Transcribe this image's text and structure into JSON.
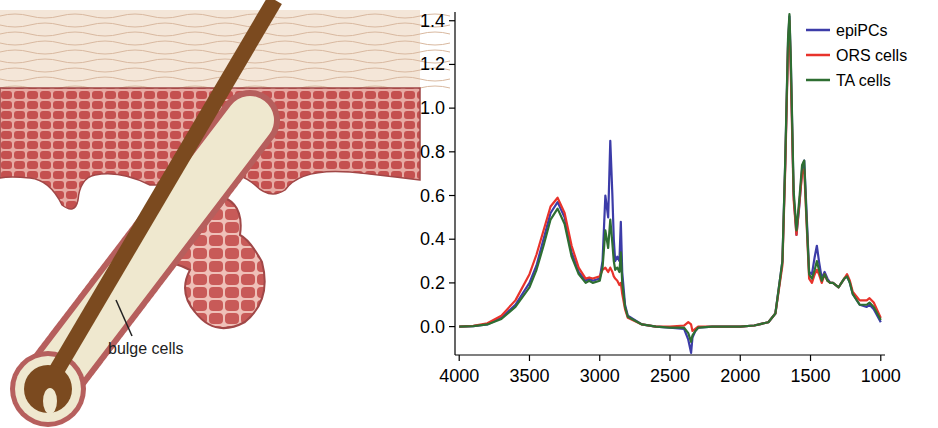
{
  "chart_data": {
    "type": "line",
    "x": [
      4000,
      3900,
      3800,
      3700,
      3600,
      3500,
      3450,
      3400,
      3350,
      3300,
      3250,
      3200,
      3150,
      3100,
      3075,
      3050,
      3000,
      2980,
      2960,
      2950,
      2940,
      2925,
      2910,
      2900,
      2890,
      2875,
      2860,
      2850,
      2840,
      2820,
      2800,
      2700,
      2600,
      2500,
      2400,
      2370,
      2350,
      2340,
      2320,
      2300,
      2200,
      2100,
      2000,
      1900,
      1800,
      1750,
      1700,
      1680,
      1660,
      1650,
      1640,
      1620,
      1600,
      1580,
      1560,
      1545,
      1530,
      1510,
      1490,
      1470,
      1455,
      1440,
      1420,
      1400,
      1380,
      1360,
      1340,
      1320,
      1300,
      1280,
      1260,
      1240,
      1220,
      1200,
      1150,
      1100,
      1080,
      1050,
      1000
    ],
    "series": [
      {
        "name": "epiPCs",
        "color": "#3c3ca8",
        "values": [
          0,
          0.002,
          0.01,
          0.04,
          0.1,
          0.2,
          0.28,
          0.4,
          0.52,
          0.57,
          0.5,
          0.34,
          0.25,
          0.21,
          0.22,
          0.21,
          0.22,
          0.3,
          0.6,
          0.55,
          0.5,
          0.85,
          0.6,
          0.4,
          0.3,
          0.32,
          0.3,
          0.48,
          0.25,
          0.1,
          0.05,
          0.01,
          0,
          -0.005,
          -0.01,
          -0.06,
          -0.12,
          -0.05,
          -0.02,
          -0.005,
          0,
          0,
          0,
          0.005,
          0.02,
          0.06,
          0.3,
          0.75,
          1.3,
          1.42,
          1.2,
          0.6,
          0.42,
          0.55,
          0.72,
          0.76,
          0.55,
          0.25,
          0.24,
          0.32,
          0.37,
          0.3,
          0.22,
          0.25,
          0.22,
          0.2,
          0.2,
          0.19,
          0.18,
          0.2,
          0.22,
          0.23,
          0.2,
          0.15,
          0.1,
          0.09,
          0.1,
          0.08,
          0.02
        ]
      },
      {
        "name": "ORS cells",
        "color": "#e8332b",
        "values": [
          0,
          0.003,
          0.015,
          0.05,
          0.12,
          0.24,
          0.33,
          0.44,
          0.55,
          0.59,
          0.52,
          0.37,
          0.27,
          0.22,
          0.225,
          0.22,
          0.23,
          0.26,
          0.27,
          0.26,
          0.25,
          0.27,
          0.25,
          0.23,
          0.22,
          0.21,
          0.19,
          0.2,
          0.15,
          0.08,
          0.04,
          0.01,
          0,
          0,
          0.005,
          0.02,
          0.01,
          -0.02,
          -0.01,
          0,
          0,
          0,
          0,
          0.005,
          0.02,
          0.06,
          0.28,
          0.72,
          1.28,
          1.4,
          1.15,
          0.58,
          0.42,
          0.56,
          0.7,
          0.72,
          0.5,
          0.22,
          0.2,
          0.24,
          0.26,
          0.24,
          0.2,
          0.24,
          0.21,
          0.2,
          0.2,
          0.19,
          0.18,
          0.2,
          0.22,
          0.24,
          0.21,
          0.16,
          0.12,
          0.12,
          0.13,
          0.11,
          0.04
        ]
      },
      {
        "name": "TA cells",
        "color": "#2e6e32",
        "values": [
          0,
          0.002,
          0.01,
          0.035,
          0.09,
          0.18,
          0.26,
          0.37,
          0.49,
          0.54,
          0.47,
          0.32,
          0.24,
          0.2,
          0.21,
          0.2,
          0.21,
          0.27,
          0.44,
          0.4,
          0.36,
          0.49,
          0.38,
          0.3,
          0.26,
          0.27,
          0.25,
          0.34,
          0.2,
          0.09,
          0.045,
          0.01,
          0,
          -0.005,
          -0.005,
          -0.03,
          -0.07,
          -0.04,
          -0.02,
          -0.005,
          0,
          0,
          0,
          0.005,
          0.02,
          0.06,
          0.3,
          0.76,
          1.32,
          1.43,
          1.22,
          0.62,
          0.44,
          0.58,
          0.74,
          0.76,
          0.52,
          0.24,
          0.22,
          0.26,
          0.3,
          0.26,
          0.21,
          0.24,
          0.21,
          0.2,
          0.2,
          0.19,
          0.18,
          0.2,
          0.22,
          0.23,
          0.2,
          0.15,
          0.1,
          0.1,
          0.11,
          0.09,
          0.03
        ]
      }
    ],
    "xlim": [
      4030,
      970
    ],
    "ylim": [
      -0.13,
      1.44
    ],
    "xticks": [
      4000,
      3500,
      3000,
      2500,
      2000,
      1500,
      1000
    ],
    "yticks": [
      {
        "value": 0,
        "label": "0.0"
      },
      0.2,
      0.4,
      0.6,
      0.8,
      {
        "value": 1,
        "label": "1.0"
      },
      1.2,
      1.4
    ],
    "legend": "top-right",
    "grid": false
  },
  "illustration": {
    "label": "bulge cells"
  }
}
